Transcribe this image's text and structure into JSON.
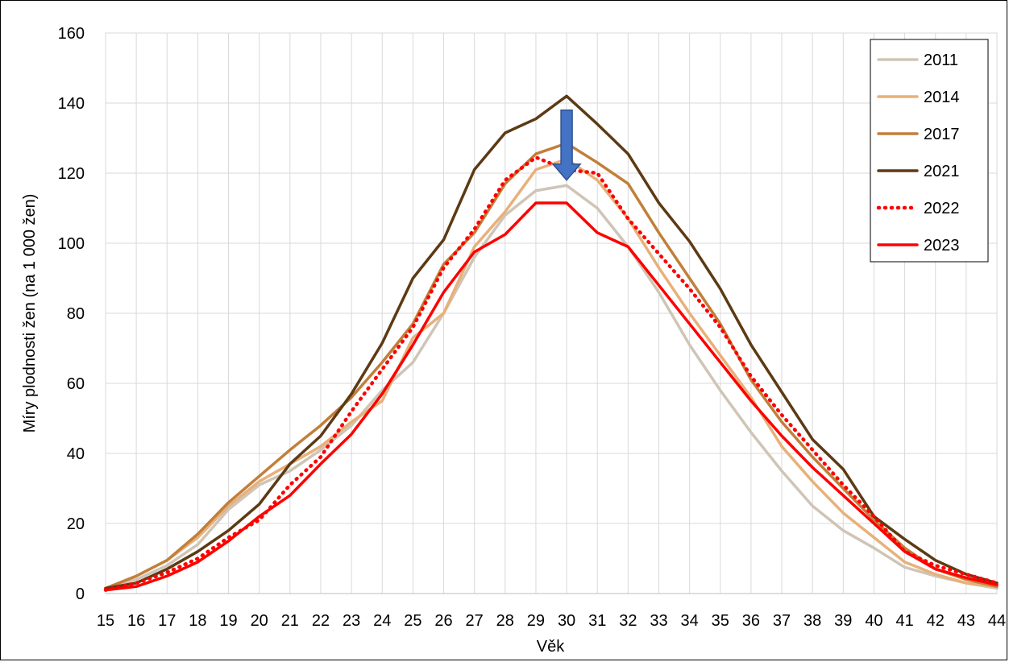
{
  "chart_data": {
    "type": "line",
    "title": "",
    "xlabel": "Věk",
    "ylabel": "Míry plodnosti žen (na 1 000 žen)",
    "ylim": [
      0,
      160
    ],
    "yticks": [
      0,
      20,
      40,
      60,
      80,
      100,
      120,
      140,
      160
    ],
    "grid": true,
    "legend_position": "top-right",
    "x": [
      15,
      16,
      17,
      18,
      19,
      20,
      21,
      22,
      23,
      24,
      25,
      26,
      27,
      28,
      29,
      30,
      31,
      32,
      33,
      34,
      35,
      36,
      37,
      38,
      39,
      40,
      41,
      42,
      43,
      44
    ],
    "series": [
      {
        "name": "2011",
        "color": "#CFC5B6",
        "style": "solid",
        "values": [
          1.5,
          4,
          8,
          14,
          24,
          31,
          35,
          41,
          48,
          58,
          66,
          80,
          96,
          108,
          115,
          116.5,
          110,
          99,
          86,
          71,
          58,
          46,
          35,
          25,
          18,
          13,
          7.5,
          5,
          3,
          1.5
        ]
      },
      {
        "name": "2014",
        "color": "#E8B07A",
        "style": "solid",
        "values": [
          1.5,
          5,
          9.5,
          16,
          25,
          32,
          37,
          42,
          49,
          55,
          73,
          80,
          99,
          109,
          121,
          124,
          118,
          107,
          93,
          80,
          68,
          56,
          42,
          32,
          23,
          16,
          9,
          5.5,
          3,
          2
        ]
      },
      {
        "name": "2017",
        "color": "#C17F3A",
        "style": "solid",
        "values": [
          1.5,
          5,
          9.5,
          17,
          26,
          33.5,
          41,
          48,
          56,
          66,
          77,
          94,
          103,
          117,
          125.5,
          128.5,
          123,
          117,
          103,
          90,
          77,
          61,
          49,
          39,
          30,
          21,
          13,
          7,
          4,
          2
        ]
      },
      {
        "name": "2021",
        "color": "#5C3A14",
        "style": "solid",
        "values": [
          1.5,
          3,
          7,
          12,
          18,
          25.5,
          37,
          45,
          57,
          71.5,
          90,
          101,
          121,
          131.5,
          135.5,
          142,
          134,
          125.5,
          111.5,
          100.5,
          87,
          71,
          57.5,
          44,
          35.5,
          22,
          15.5,
          9.5,
          5.5,
          3
        ]
      },
      {
        "name": "2022",
        "color": "#FF0000",
        "style": "dotted",
        "values": [
          1,
          3,
          6,
          10,
          16,
          21,
          31,
          39,
          52,
          64,
          76,
          93,
          104,
          118,
          124.5,
          121,
          120,
          107,
          97,
          87,
          76,
          62,
          51,
          41,
          31,
          22,
          12,
          8,
          5.5,
          3
        ]
      },
      {
        "name": "2023",
        "color": "#FF0000",
        "style": "solid",
        "values": [
          1,
          2,
          5,
          9,
          15,
          22,
          28,
          37,
          45.5,
          57,
          71,
          86,
          97.5,
          102.5,
          111.5,
          111.5,
          103,
          99,
          88,
          77,
          66,
          55,
          45,
          36,
          28,
          20,
          12,
          7,
          4.5,
          2.5
        ]
      }
    ],
    "annotation": {
      "type": "arrow-down",
      "x": 30,
      "y_from": 138,
      "y_to": 118,
      "color": "#4472C4"
    }
  }
}
